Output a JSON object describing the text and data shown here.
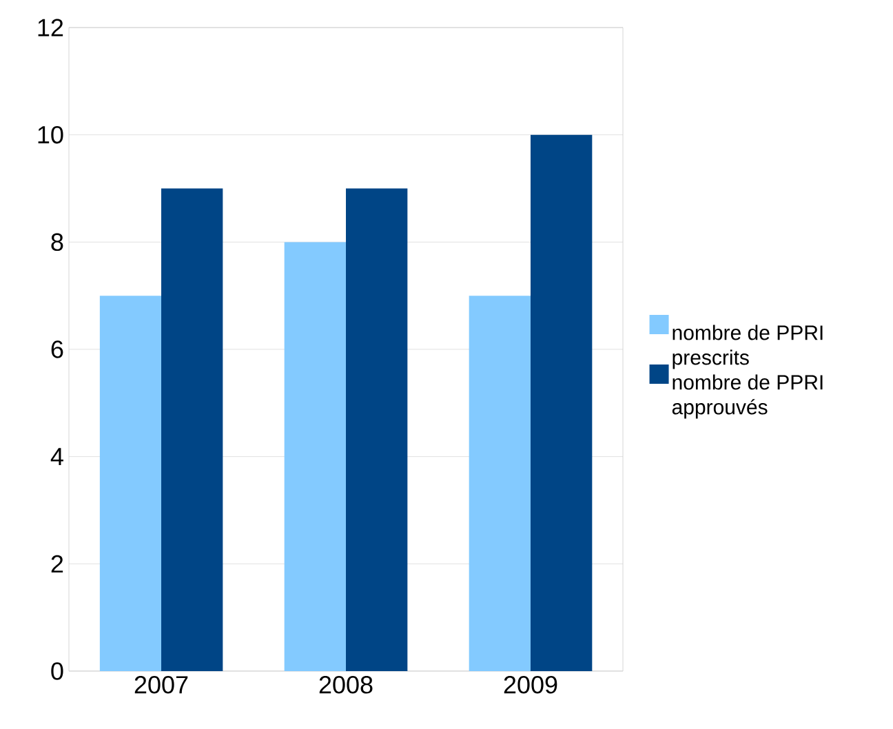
{
  "chart_data": {
    "type": "bar",
    "categories": [
      "2007",
      "2008",
      "2009"
    ],
    "series": [
      {
        "name": "nombre de PPRI prescrits",
        "color": "#83caff",
        "values": [
          7,
          8,
          7
        ]
      },
      {
        "name": "nombre de PPRI approuvés",
        "color": "#004586",
        "values": [
          9,
          9,
          10
        ]
      }
    ],
    "ylim": [
      0,
      12
    ],
    "yticks": [
      0,
      2,
      4,
      6,
      8,
      10,
      12
    ],
    "grid": "y",
    "legend": "right"
  }
}
